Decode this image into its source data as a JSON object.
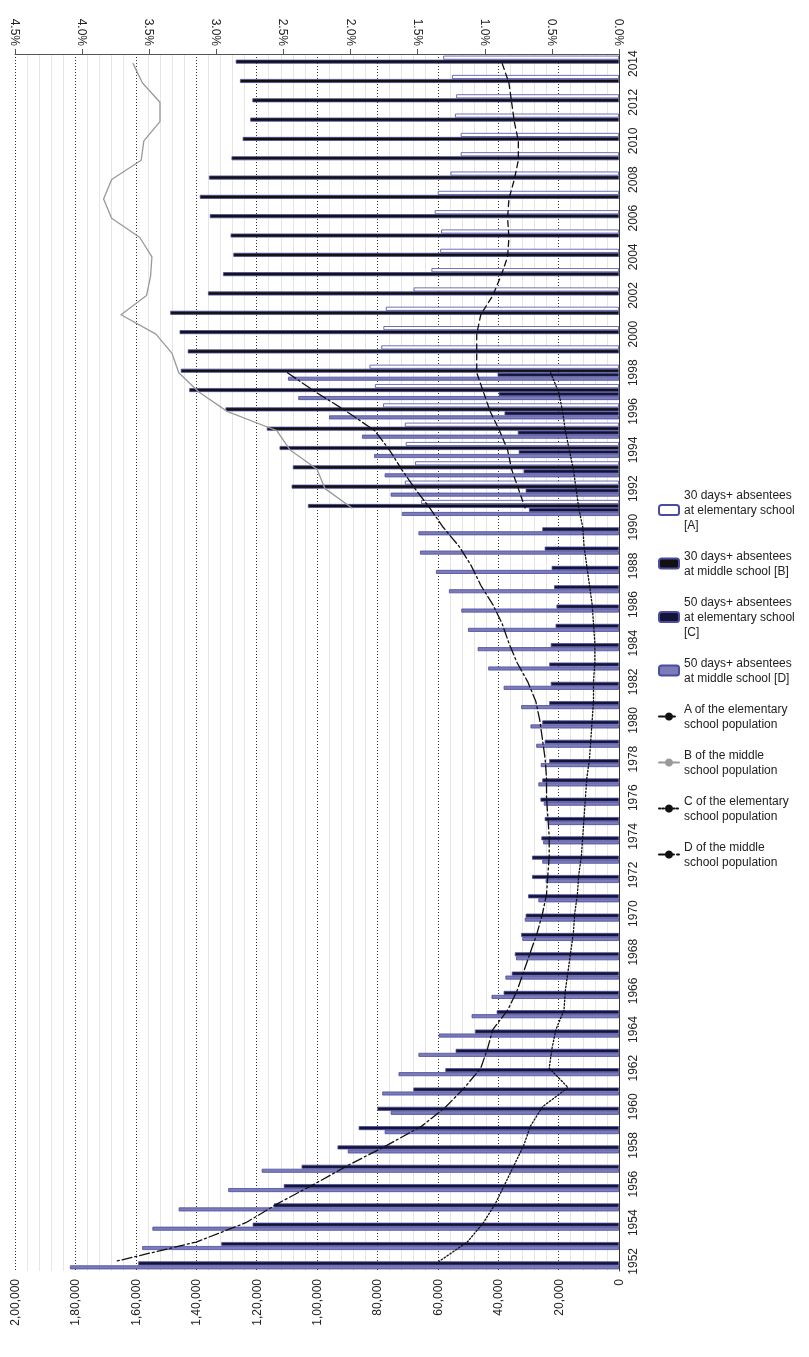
{
  "chart_data": {
    "type": "bar",
    "categories": [
      "2014",
      null,
      "2012",
      null,
      "2010",
      null,
      "2008",
      null,
      "2006",
      null,
      "2004",
      null,
      "2002",
      null,
      "2000",
      null,
      "1998",
      null,
      "1996",
      null,
      "1994",
      null,
      "1992",
      null,
      "1990",
      null,
      "1988",
      null,
      "1986",
      null,
      "1984",
      null,
      "1982",
      null,
      "1980",
      null,
      "1978",
      null,
      "1976",
      null,
      "1974",
      null,
      "1972",
      null,
      "1970",
      null,
      "1968",
      null,
      "1966",
      null,
      "1964",
      null,
      "1962",
      null,
      "1960",
      null,
      "1958",
      null,
      "1956",
      null,
      "1954",
      null,
      "1952"
    ],
    "series": [
      {
        "name": "30 days+ absentees at elementary school [A]",
        "color": "#ffffff",
        "values": [
          58200,
          55300,
          53900,
          54300,
          52400,
          52400,
          55800,
          60000,
          61000,
          58900,
          59200,
          62100,
          68000,
          77200,
          78000,
          78700,
          82600,
          80800,
          78100,
          70900,
          70600,
          67500,
          70900,
          65500,
          null,
          null,
          null,
          null,
          null,
          null,
          null,
          null,
          null,
          null,
          null,
          null,
          null,
          null,
          null,
          null,
          null,
          null,
          null,
          null,
          null,
          null,
          null,
          null,
          null,
          null,
          null,
          null,
          null,
          null,
          null,
          null,
          null,
          null,
          null,
          null,
          null,
          null,
          null
        ]
      },
      {
        "name": "30 days+ absentees at middle school [B]",
        "color": "#111111",
        "values": [
          126900,
          125500,
          121400,
          122100,
          124600,
          128300,
          135800,
          138800,
          135500,
          128600,
          127700,
          131100,
          136100,
          148600,
          145500,
          142800,
          145100,
          142300,
          130300,
          116600,
          112400,
          108000,
          108400,
          103000,
          null,
          null,
          null,
          null,
          null,
          null,
          null,
          null,
          null,
          null,
          null,
          null,
          null,
          null,
          null,
          null,
          null,
          null,
          null,
          null,
          null,
          null,
          null,
          null,
          null,
          null,
          null,
          null,
          null,
          null,
          null,
          null,
          null,
          null,
          null,
          null,
          null,
          null,
          null
        ]
      },
      {
        "name": "50 days+ absentees at elementary school [C]",
        "color": "#141436",
        "values": [
          null,
          null,
          null,
          null,
          null,
          null,
          null,
          null,
          null,
          null,
          null,
          null,
          null,
          null,
          null,
          null,
          40200,
          39800,
          37900,
          33500,
          33200,
          31600,
          30900,
          29800,
          25400,
          24600,
          22300,
          21500,
          20700,
          21000,
          22600,
          23100,
          22600,
          23100,
          25400,
          24600,
          23100,
          25400,
          26000,
          24600,
          25700,
          28800,
          28800,
          30100,
          30900,
          32400,
          34500,
          35500,
          38200,
          40500,
          47700,
          54100,
          57500,
          68100,
          80000,
          86200,
          93200,
          105100,
          111000,
          114300,
          121300,
          131700,
          159200
        ]
      },
      {
        "name": "50 days+ absentees at middle school [D]",
        "color": "#7c7cb8",
        "values": [
          null,
          null,
          null,
          null,
          null,
          null,
          null,
          null,
          null,
          null,
          null,
          null,
          null,
          null,
          null,
          null,
          109600,
          106200,
          96000,
          85100,
          81100,
          77600,
          75600,
          71900,
          66400,
          65900,
          60600,
          56300,
          52200,
          50000,
          46800,
          43300,
          38200,
          32400,
          29300,
          27400,
          25900,
          26700,
          24900,
          23400,
          25100,
          25400,
          24300,
          26700,
          31200,
          32000,
          34100,
          37600,
          42200,
          48800,
          59700,
          66400,
          73000,
          78400,
          75600,
          77600,
          89800,
          118300,
          129400,
          145800,
          154500,
          157900,
          181800
        ]
      },
      {
        "name": "A of the elementary school population",
        "type": "line",
        "axis": "x2",
        "color": "#111111",
        "line_style": "dashed",
        "values": [
          0.87,
          0.82,
          0.8,
          0.78,
          0.75,
          0.75,
          0.78,
          0.82,
          0.83,
          0.82,
          0.83,
          0.88,
          0.94,
          1.03,
          1.06,
          1.06,
          1.06,
          1.01,
          0.96,
          0.89,
          0.83,
          0.8,
          0.75,
          0.7,
          null,
          null,
          null,
          null,
          null,
          null,
          null,
          null,
          null,
          null,
          null,
          null,
          null,
          null,
          null,
          null,
          null,
          null,
          null,
          null,
          null,
          null,
          null,
          null,
          null,
          null,
          null,
          null,
          null,
          null,
          null,
          null,
          null,
          null,
          null,
          null,
          null,
          null,
          null
        ]
      },
      {
        "name": "B of the middle school population",
        "type": "line",
        "axis": "x2",
        "color": "#999999",
        "line_style": "solid",
        "values": [
          3.62,
          3.55,
          3.42,
          3.42,
          3.54,
          3.56,
          3.78,
          3.84,
          3.78,
          3.57,
          3.48,
          3.49,
          3.52,
          3.71,
          3.45,
          3.33,
          3.28,
          3.13,
          2.92,
          2.55,
          2.45,
          2.25,
          2.19,
          1.99,
          null,
          null,
          null,
          null,
          null,
          null,
          null,
          null,
          null,
          null,
          null,
          null,
          null,
          null,
          null,
          null,
          null,
          null,
          null,
          null,
          null,
          null,
          null,
          null,
          null,
          null,
          null,
          null,
          null,
          null,
          null,
          null,
          null,
          null,
          null,
          null,
          null,
          null,
          null
        ]
      },
      {
        "name": "C of the elementary school population",
        "type": "line",
        "axis": "x2",
        "color": "#111111",
        "line_style": "dotted",
        "values": [
          null,
          null,
          null,
          null,
          null,
          null,
          null,
          null,
          null,
          null,
          null,
          null,
          null,
          null,
          null,
          null,
          0.51,
          0.45,
          0.42,
          0.4,
          0.37,
          0.34,
          0.32,
          0.3,
          0.27,
          0.26,
          0.24,
          0.22,
          0.2,
          0.19,
          0.18,
          0.18,
          0.19,
          0.19,
          0.2,
          0.21,
          0.22,
          0.24,
          0.25,
          0.26,
          0.27,
          0.28,
          0.3,
          0.31,
          0.33,
          0.34,
          0.36,
          0.38,
          0.4,
          0.41,
          0.47,
          0.5,
          0.52,
          0.38,
          0.57,
          0.66,
          0.71,
          0.78,
          0.85,
          0.92,
          1.01,
          1.13,
          1.34
        ]
      },
      {
        "name": "D of the middle school population",
        "type": "line",
        "axis": "x2",
        "color": "#111111",
        "line_style": "dashdot",
        "values": [
          null,
          null,
          null,
          null,
          null,
          null,
          null,
          null,
          null,
          null,
          null,
          null,
          null,
          null,
          null,
          null,
          2.47,
          2.26,
          2.03,
          1.82,
          1.71,
          1.62,
          1.52,
          1.41,
          1.31,
          1.19,
          1.1,
          1.03,
          0.94,
          0.87,
          0.82,
          0.76,
          0.68,
          0.62,
          0.59,
          0.57,
          0.55,
          0.54,
          0.54,
          0.53,
          0.52,
          0.52,
          0.53,
          0.54,
          0.57,
          0.61,
          0.66,
          0.71,
          0.76,
          0.83,
          0.94,
          0.98,
          1.03,
          1.15,
          1.29,
          1.47,
          1.73,
          2.01,
          2.27,
          2.54,
          2.78,
          3.15,
          3.75
        ]
      }
    ],
    "orientation": "horizontal",
    "xlim": [
      200000,
      0
    ],
    "xticks": [
      0,
      {
        "value": 20000,
        "label": "20,000"
      },
      {
        "value": 40000,
        "label": "40,000"
      },
      {
        "value": 60000,
        "label": "60,000"
      },
      {
        "value": 80000,
        "label": "80,000"
      },
      {
        "value": 100000,
        "label": "1,00,000"
      },
      {
        "value": 120000,
        "label": "1,20,000"
      },
      {
        "value": 140000,
        "label": "1,40,000"
      },
      {
        "value": 160000,
        "label": "1,60,000"
      },
      {
        "value": 180000,
        "label": "1,80,000"
      },
      {
        "value": 200000,
        "label": "2,00,000"
      }
    ],
    "x2lim": [
      4.5,
      0
    ],
    "x2ticks": [
      {
        "value": 0,
        "label": "0.0%"
      },
      {
        "value": 0.5,
        "label": "0.5%"
      },
      {
        "value": 1,
        "label": "1.0%"
      },
      {
        "value": 1.5,
        "label": "1.5%"
      },
      {
        "value": 2,
        "label": "2.0%"
      },
      {
        "value": 2.5,
        "label": "2.5%"
      },
      {
        "value": 3,
        "label": "3.0%"
      },
      {
        "value": 3.5,
        "label": "3.5%"
      },
      {
        "value": 4,
        "label": "4.0%"
      },
      {
        "value": 4.5,
        "label": "4.5%"
      }
    ],
    "grid": "x",
    "legend": "right",
    "marker": "none"
  }
}
